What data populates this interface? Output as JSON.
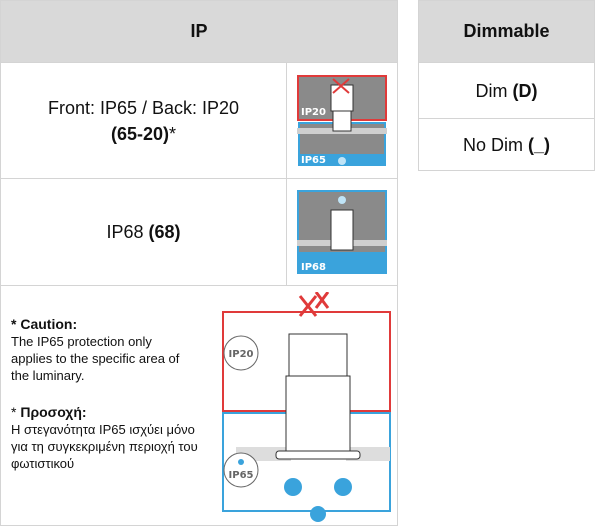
{
  "ip_table": {
    "header": "IP",
    "rows": [
      {
        "text": "Front: IP65 / Back: IP20",
        "code": "(65-20)",
        "suffix": "*",
        "icon_top": "IP20",
        "icon_bottom": "IP65"
      },
      {
        "text": "IP68",
        "code": "(68)",
        "icon_bottom": "IP68"
      }
    ],
    "caution": {
      "title": "* Caution:",
      "body": "The IP65 protection only applies to the specific area of the luminary.",
      "title_gr_prefix": "*",
      "title_gr": "Προσοχή:",
      "body_gr": "Η στεγανότητα IP65 ισχύει μόνο για τη συγκεκριμένη περιοχή του φωτιστικού",
      "diagram_top": "IP20",
      "diagram_bottom": "IP65"
    }
  },
  "dimmable_table": {
    "header": "Dimmable",
    "rows": [
      {
        "text": "Dim",
        "code": "(D)"
      },
      {
        "text": "No Dim",
        "code": "(_)"
      }
    ]
  }
}
